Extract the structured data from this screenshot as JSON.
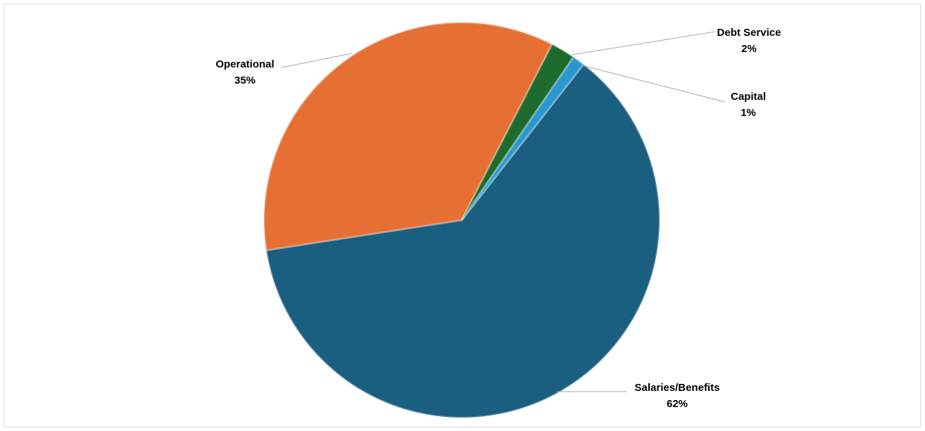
{
  "chart_data": {
    "type": "pie",
    "slices": [
      {
        "name": "Salaries/Benefits",
        "value": 62,
        "label": "62%",
        "color": "#1a5e80"
      },
      {
        "name": "Operational",
        "value": 35,
        "label": "35%",
        "color": "#e67034"
      },
      {
        "name": "Debt Service",
        "value": 2,
        "label": "2%",
        "color": "#1e6b2e"
      },
      {
        "name": "Capital",
        "value": 1,
        "label": "1%",
        "color": "#2a97cf"
      }
    ],
    "title": "",
    "legend": "none"
  }
}
